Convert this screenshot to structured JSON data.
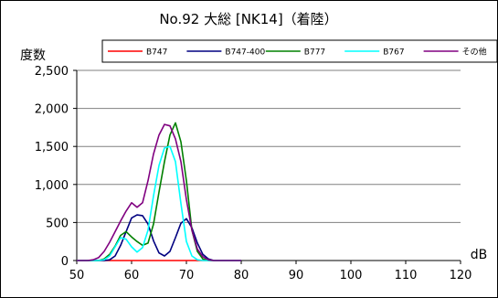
{
  "chart_data": {
    "type": "line",
    "title": "No.92 大総 [NK14]（着陸）",
    "ylabel": "度数",
    "xlabel": "dB",
    "xlim": [
      50,
      120
    ],
    "ylim": [
      0,
      2500
    ],
    "xticks": [
      "50",
      "60",
      "70",
      "80",
      "90",
      "100",
      "110",
      "120"
    ],
    "yticks": [
      "0",
      "500",
      "1,000",
      "1,500",
      "2,000",
      "2,500"
    ],
    "grid": true,
    "legend_position": "top",
    "x": [
      50,
      51,
      52,
      53,
      54,
      55,
      56,
      57,
      58,
      59,
      60,
      61,
      62,
      63,
      64,
      65,
      66,
      67,
      68,
      69,
      70,
      71,
      72,
      73,
      74,
      75,
      76,
      77,
      78,
      79,
      80
    ],
    "series": [
      {
        "name": "B747",
        "color": "#ff0000",
        "values": [
          0,
          0,
          0,
          0,
          0,
          0,
          0,
          0,
          0,
          0,
          0,
          0,
          0,
          0,
          0,
          0,
          0,
          0,
          0,
          0,
          0,
          0,
          0,
          0,
          0,
          0,
          0,
          0,
          0,
          0,
          0
        ]
      },
      {
        "name": "B747-400",
        "color": "#000080",
        "values": [
          0,
          0,
          0,
          0,
          0,
          0,
          10,
          60,
          200,
          380,
          560,
          600,
          590,
          480,
          260,
          100,
          60,
          120,
          300,
          490,
          550,
          430,
          230,
          80,
          20,
          0,
          0,
          0,
          0,
          0,
          0
        ]
      },
      {
        "name": "B777",
        "color": "#008000",
        "values": [
          0,
          0,
          0,
          0,
          0,
          20,
          80,
          190,
          330,
          380,
          310,
          250,
          200,
          230,
          480,
          900,
          1300,
          1650,
          1810,
          1560,
          1050,
          400,
          120,
          20,
          0,
          0,
          0,
          0,
          0,
          0,
          0
        ]
      },
      {
        "name": "B767",
        "color": "#00ffff",
        "values": [
          0,
          0,
          0,
          0,
          0,
          10,
          60,
          180,
          300,
          280,
          180,
          110,
          170,
          400,
          850,
          1250,
          1480,
          1500,
          1300,
          750,
          250,
          60,
          10,
          0,
          0,
          0,
          0,
          0,
          0,
          0,
          0
        ]
      },
      {
        "name": "その他",
        "color": "#800080",
        "values": [
          0,
          0,
          0,
          10,
          40,
          120,
          240,
          380,
          520,
          650,
          760,
          700,
          760,
          1050,
          1400,
          1650,
          1790,
          1770,
          1600,
          1300,
          800,
          400,
          150,
          50,
          10,
          0,
          0,
          0,
          0,
          0,
          0
        ]
      }
    ]
  }
}
